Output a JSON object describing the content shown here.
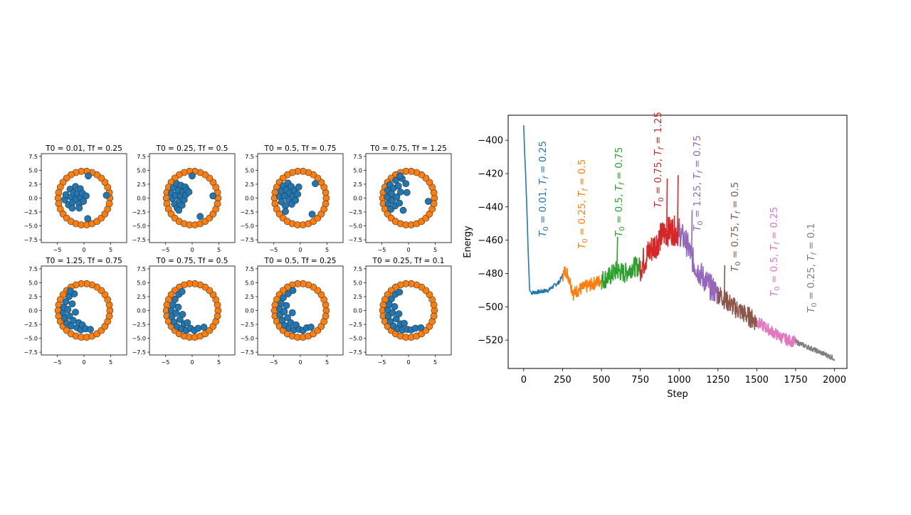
{
  "colors": {
    "inner_particle": "#1f77b4",
    "ring_particle": "#ff7f0e",
    "edge": "#333333",
    "series": [
      "#1f77b4",
      "#ff7f0e",
      "#2ca02c",
      "#d62728",
      "#9467bd",
      "#8c564b",
      "#e377c2",
      "#7f7f7f"
    ]
  },
  "chart_data": [
    {
      "type": "scatter",
      "panel": 1,
      "title": "T0 = 0.01, Tf = 0.25",
      "xlim": [
        -8,
        8
      ],
      "ylim": [
        -8,
        8
      ],
      "x_ticks": [
        "−5",
        "0",
        "5"
      ],
      "y_ticks": [
        "7.5",
        "5.0",
        "2.5",
        "0.0",
        "−2.5",
        "−5.0",
        "−7.5"
      ],
      "ring": {
        "count": 30,
        "radius": 4.85
      },
      "inner_points": [
        [
          -3.6,
          -0.3
        ],
        [
          -3.4,
          0.6
        ],
        [
          -2.9,
          -1.2
        ],
        [
          -2.6,
          1.6
        ],
        [
          -2.4,
          0.2
        ],
        [
          -2.2,
          -0.8
        ],
        [
          -1.9,
          1.0
        ],
        [
          -1.6,
          2.1
        ],
        [
          -1.5,
          -0.2
        ],
        [
          -1.2,
          0.8
        ],
        [
          -0.9,
          -1.1
        ],
        [
          -0.7,
          1.7
        ],
        [
          -0.6,
          0.1
        ],
        [
          -0.3,
          0.9
        ],
        [
          -0.1,
          -0.6
        ],
        [
          0.4,
          0.4
        ],
        [
          -2.2,
          -1.8
        ],
        [
          -0.9,
          -1.8
        ],
        [
          0.8,
          4.0
        ],
        [
          4.2,
          0.5
        ],
        [
          0.7,
          -3.7
        ]
      ]
    },
    {
      "type": "scatter",
      "panel": 2,
      "title": "T0 = 0.25, Tf = 0.5",
      "xlim": [
        -8,
        8
      ],
      "ylim": [
        -8,
        8
      ],
      "x_ticks": [
        "−5",
        "0",
        "5"
      ],
      "y_ticks": [
        "7.5",
        "5.0",
        "2.5",
        "0.0",
        "−2.5",
        "−5.0",
        "−7.5"
      ],
      "ring": {
        "count": 30,
        "radius": 4.85
      },
      "inner_points": [
        [
          -3.9,
          0.9
        ],
        [
          -3.7,
          -0.1
        ],
        [
          -3.5,
          1.9
        ],
        [
          -3.3,
          -1.1
        ],
        [
          -3.1,
          0.5
        ],
        [
          -2.9,
          2.6
        ],
        [
          -2.8,
          -1.8
        ],
        [
          -2.6,
          1.4
        ],
        [
          -2.4,
          -0.5
        ],
        [
          -2.2,
          0.4
        ],
        [
          -2.1,
          2.3
        ],
        [
          -1.9,
          -1.3
        ],
        [
          -1.7,
          1.2
        ],
        [
          -1.5,
          -0.3
        ],
        [
          -1.3,
          2.0
        ],
        [
          -1.2,
          0.6
        ],
        [
          -1.0,
          1.5
        ],
        [
          -0.6,
          1.1
        ],
        [
          -2.5,
          -2.2
        ],
        [
          0.0,
          4.0
        ],
        [
          3.9,
          0.4
        ],
        [
          1.5,
          -3.3
        ]
      ]
    },
    {
      "type": "scatter",
      "panel": 3,
      "title": "T0 = 0.5, Tf = 0.75",
      "xlim": [
        -8,
        8
      ],
      "ylim": [
        -8,
        8
      ],
      "x_ticks": [
        "−5",
        "0",
        "5"
      ],
      "y_ticks": [
        "7.5",
        "5.0",
        "2.5",
        "0.0",
        "−2.5",
        "−5.0",
        "−7.5"
      ],
      "ring": {
        "count": 30,
        "radius": 4.85
      },
      "inner_points": [
        [
          -3.9,
          0.3
        ],
        [
          -3.6,
          1.3
        ],
        [
          -3.5,
          -0.7
        ],
        [
          -3.2,
          2.2
        ],
        [
          -3.0,
          0.4
        ],
        [
          -2.8,
          -1.4
        ],
        [
          -2.6,
          1.5
        ],
        [
          -2.3,
          2.7
        ],
        [
          -2.2,
          -0.3
        ],
        [
          -2.0,
          0.9
        ],
        [
          -1.7,
          2.1
        ],
        [
          -1.6,
          -1.1
        ],
        [
          -1.4,
          0.3
        ],
        [
          -1.1,
          1.4
        ],
        [
          -0.9,
          -0.4
        ],
        [
          -0.5,
          0.7
        ],
        [
          -0.3,
          2.0
        ],
        [
          -2.8,
          -2.4
        ],
        [
          2.8,
          2.6
        ],
        [
          2.2,
          -2.9
        ]
      ]
    },
    {
      "type": "scatter",
      "panel": 4,
      "title": "T0 = 0.75, Tf = 1.25",
      "xlim": [
        -8,
        8
      ],
      "ylim": [
        -8,
        8
      ],
      "x_ticks": [
        "−5",
        "0",
        "5"
      ],
      "y_ticks": [
        "7.5",
        "5.0",
        "2.5",
        "0.0",
        "−2.5",
        "−5.0",
        "−7.5"
      ],
      "ring": {
        "count": 30,
        "radius": 4.85
      },
      "inner_points": [
        [
          -4.0,
          0.2
        ],
        [
          -3.9,
          1.4
        ],
        [
          -3.8,
          -1.0
        ],
        [
          -3.5,
          2.4
        ],
        [
          -3.3,
          -2.0
        ],
        [
          -3.2,
          0.8
        ],
        [
          -3.0,
          -0.4
        ],
        [
          -2.8,
          1.8
        ],
        [
          -2.5,
          -1.4
        ],
        [
          -2.4,
          3.2
        ],
        [
          -2.2,
          0.2
        ],
        [
          -1.9,
          2.2
        ],
        [
          -1.7,
          -0.9
        ],
        [
          -1.5,
          1.1
        ],
        [
          -1.2,
          3.5
        ],
        [
          -1.0,
          -2.2
        ],
        [
          -0.5,
          2.6
        ],
        [
          -0.3,
          1.0
        ],
        [
          -1.6,
          4.0
        ],
        [
          3.7,
          -0.6
        ]
      ]
    },
    {
      "type": "scatter",
      "panel": 5,
      "title": "T0 = 1.25, Tf = 0.75",
      "xlim": [
        -8,
        8
      ],
      "ylim": [
        -8,
        8
      ],
      "x_ticks": [
        "−5",
        "0",
        "5"
      ],
      "y_ticks": [
        "7.5",
        "5.0",
        "2.5",
        "0.0",
        "−2.5",
        "−5.0",
        "−7.5"
      ],
      "ring": {
        "count": 30,
        "radius": 4.85
      },
      "inner_points": [
        [
          -3.9,
          -0.4
        ],
        [
          -3.8,
          0.6
        ],
        [
          -3.6,
          -1.4
        ],
        [
          -3.4,
          1.6
        ],
        [
          -3.2,
          -2.3
        ],
        [
          -3.0,
          0.2
        ],
        [
          -2.8,
          2.5
        ],
        [
          -2.7,
          -1.0
        ],
        [
          -2.4,
          -2.8
        ],
        [
          -2.2,
          1.2
        ],
        [
          -2.0,
          -1.8
        ],
        [
          -1.8,
          3.0
        ],
        [
          -1.6,
          -0.3
        ],
        [
          -1.3,
          -3.1
        ],
        [
          -1.0,
          -2.2
        ],
        [
          -0.6,
          -3.5
        ],
        [
          -0.3,
          -2.6
        ],
        [
          0.3,
          -3.3
        ],
        [
          1.2,
          -3.4
        ],
        [
          -2.6,
          3.5
        ]
      ]
    },
    {
      "type": "scatter",
      "panel": 6,
      "title": "T0 = 0.75, Tf = 0.5",
      "xlim": [
        -8,
        8
      ],
      "ylim": [
        -8,
        8
      ],
      "x_ticks": [
        "−5",
        "0",
        "5"
      ],
      "y_ticks": [
        "7.5",
        "5.0",
        "2.5",
        "0.0",
        "−2.5",
        "−5.0",
        "−7.5"
      ],
      "ring": {
        "count": 30,
        "radius": 4.85
      },
      "inner_points": [
        [
          -3.9,
          0.0
        ],
        [
          -3.8,
          -1.1
        ],
        [
          -3.6,
          1.0
        ],
        [
          -3.4,
          -2.1
        ],
        [
          -3.2,
          2.0
        ],
        [
          -3.0,
          -0.5
        ],
        [
          -2.8,
          -2.9
        ],
        [
          -2.6,
          0.6
        ],
        [
          -2.5,
          2.9
        ],
        [
          -2.3,
          -1.6
        ],
        [
          -2.0,
          -3.3
        ],
        [
          -1.8,
          -0.7
        ],
        [
          -1.5,
          -2.4
        ],
        [
          -1.1,
          -3.6
        ],
        [
          -0.9,
          -2.2
        ],
        [
          -0.3,
          -3.2
        ],
        [
          0.4,
          -3.6
        ],
        [
          1.1,
          -3.2
        ],
        [
          2.2,
          -3.0
        ],
        [
          -1.9,
          3.4
        ]
      ]
    },
    {
      "type": "scatter",
      "panel": 7,
      "title": "T0 = 0.5, Tf = 0.25",
      "xlim": [
        -8,
        8
      ],
      "ylim": [
        -8,
        8
      ],
      "x_ticks": [
        "−5",
        "0",
        "5"
      ],
      "y_ticks": [
        "7.5",
        "5.0",
        "2.5",
        "0.0",
        "−2.5",
        "−5.0",
        "−7.5"
      ],
      "ring": {
        "count": 30,
        "radius": 4.85
      },
      "inner_points": [
        [
          -3.9,
          0.3
        ],
        [
          -3.8,
          -0.8
        ],
        [
          -3.6,
          1.3
        ],
        [
          -3.4,
          -1.8
        ],
        [
          -3.2,
          2.3
        ],
        [
          -3.0,
          -0.2
        ],
        [
          -2.9,
          -2.7
        ],
        [
          -2.6,
          0.9
        ],
        [
          -2.4,
          -1.3
        ],
        [
          -2.3,
          3.0
        ],
        [
          -2.1,
          -3.2
        ],
        [
          -1.8,
          -2.2
        ],
        [
          -1.5,
          -0.4
        ],
        [
          -1.2,
          -3.5
        ],
        [
          -0.8,
          -2.6
        ],
        [
          -0.2,
          -3.4
        ],
        [
          0.5,
          -3.6
        ],
        [
          1.2,
          -3.1
        ],
        [
          2.0,
          -3.0
        ],
        [
          -1.4,
          3.6
        ]
      ]
    },
    {
      "type": "scatter",
      "panel": 8,
      "title": "T0 = 0.25, Tf = 0.1",
      "xlim": [
        -8,
        8
      ],
      "ylim": [
        -8,
        8
      ],
      "x_ticks": [
        "−5",
        "0",
        "5"
      ],
      "y_ticks": [
        "7.5",
        "5.0",
        "2.5",
        "0.0",
        "−2.5",
        "−5.0",
        "−7.5"
      ],
      "ring": {
        "count": 30,
        "radius": 4.85
      },
      "inner_points": [
        [
          -3.9,
          0.1
        ],
        [
          -3.8,
          -1.0
        ],
        [
          -3.6,
          1.1
        ],
        [
          -3.4,
          -2.0
        ],
        [
          -3.2,
          2.1
        ],
        [
          -3.0,
          -0.4
        ],
        [
          -2.8,
          -2.8
        ],
        [
          -2.6,
          0.7
        ],
        [
          -2.5,
          2.9
        ],
        [
          -2.3,
          -1.5
        ],
        [
          -2.0,
          -3.3
        ],
        [
          -1.8,
          -0.6
        ],
        [
          -1.5,
          -2.4
        ],
        [
          -1.1,
          -3.5
        ],
        [
          -0.8,
          -2.3
        ],
        [
          -0.2,
          -3.4
        ],
        [
          0.5,
          -3.5
        ],
        [
          1.3,
          -3.2
        ],
        [
          2.3,
          -3.1
        ],
        [
          -1.7,
          3.3
        ]
      ]
    },
    {
      "type": "line",
      "xlabel": "Step",
      "ylabel": "Energy",
      "xlim": [
        -100,
        2080
      ],
      "ylim": [
        -537,
        -385
      ],
      "x_ticks": [
        0,
        250,
        500,
        750,
        1000,
        1250,
        1500,
        1750,
        2000
      ],
      "y_ticks": [
        -400,
        -420,
        -440,
        -460,
        -480,
        -500,
        -520
      ],
      "series": [
        {
          "label": "T_0 = 0.01, T_f = 0.25",
          "x_range": [
            0,
            250
          ],
          "anchors": [
            [
              0,
              -391
            ],
            [
              5,
              -405
            ],
            [
              12,
              -420
            ],
            [
              20,
              -440
            ],
            [
              30,
              -470
            ],
            [
              38,
              -490
            ],
            [
              50,
              -491.5
            ],
            [
              100,
              -491
            ],
            [
              160,
              -490
            ],
            [
              200,
              -487
            ],
            [
              230,
              -485
            ],
            [
              250,
              -481
            ]
          ],
          "noise": 1.2
        },
        {
          "label": "T_0 = 0.25, T_f = 0.5",
          "x_range": [
            250,
            500
          ],
          "anchors": [
            [
              250,
              -481
            ],
            [
              270,
              -478
            ],
            [
              290,
              -482
            ],
            [
              320,
              -492
            ],
            [
              350,
              -490
            ],
            [
              400,
              -488
            ],
            [
              450,
              -486
            ],
            [
              500,
              -484
            ]
          ],
          "noise": 4
        },
        {
          "label": "T_0 = 0.5, T_f = 0.75",
          "x_range": [
            500,
            750
          ],
          "anchors": [
            [
              500,
              -484
            ],
            [
              550,
              -482
            ],
            [
              600,
              -478
            ],
            [
              650,
              -480
            ],
            [
              700,
              -476
            ],
            [
              750,
              -476
            ]
          ],
          "noise": 6
        },
        {
          "label": "T_0 = 0.75, T_f = 1.25",
          "x_range": [
            750,
            1000
          ],
          "anchors": [
            [
              750,
              -476
            ],
            [
              800,
              -468
            ],
            [
              850,
              -462
            ],
            [
              900,
              -456
            ],
            [
              950,
              -454
            ],
            [
              1000,
              -455
            ]
          ],
          "noise": 9
        },
        {
          "label": "T_0 = 1.25, T_f = 0.75",
          "x_range": [
            1000,
            1250
          ],
          "anchors": [
            [
              1000,
              -455
            ],
            [
              1050,
              -462
            ],
            [
              1100,
              -475
            ],
            [
              1150,
              -482
            ],
            [
              1200,
              -488
            ],
            [
              1250,
              -492
            ]
          ],
          "noise": 8
        },
        {
          "label": "T_0 = 0.75, T_f = 0.5",
          "x_range": [
            1250,
            1500
          ],
          "anchors": [
            [
              1250,
              -492
            ],
            [
              1300,
              -496
            ],
            [
              1350,
              -500
            ],
            [
              1400,
              -503
            ],
            [
              1450,
              -506
            ],
            [
              1500,
              -509
            ]
          ],
          "noise": 6
        },
        {
          "label": "T_0 = 0.5, T_f = 0.25",
          "x_range": [
            1500,
            1750
          ],
          "anchors": [
            [
              1500,
              -509
            ],
            [
              1550,
              -512
            ],
            [
              1600,
              -515
            ],
            [
              1650,
              -518
            ],
            [
              1700,
              -520
            ],
            [
              1750,
              -521
            ]
          ],
          "noise": 3.5
        },
        {
          "label": "T_0 = 0.25, T_f = 0.1",
          "x_range": [
            1750,
            2000
          ],
          "anchors": [
            [
              1750,
              -521
            ],
            [
              1800,
              -523
            ],
            [
              1850,
              -525
            ],
            [
              1900,
              -527
            ],
            [
              1950,
              -529
            ],
            [
              2000,
              -531
            ]
          ],
          "noise": 1.5
        }
      ],
      "spikes": [
        {
          "x": 600,
          "y": -458
        },
        {
          "x": 920,
          "y": -423
        },
        {
          "x": 990,
          "y": -421
        },
        {
          "x": 1080,
          "y": -442
        },
        {
          "x": 1290,
          "y": -475
        }
      ]
    }
  ]
}
